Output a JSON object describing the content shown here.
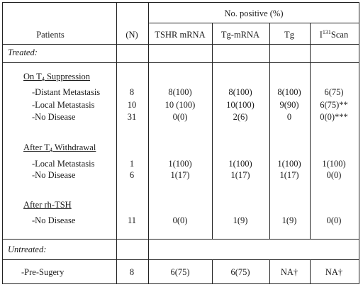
{
  "header": {
    "group_label": "No. positive (%)",
    "patients": "Patients",
    "n": "(N)",
    "tshr": "TSHR mRNA",
    "tg_mrna": "Tg-mRNA",
    "tg": "Tg",
    "scan_prefix": "I",
    "scan_sup": "131",
    "scan_suffix": "Scan"
  },
  "sections": {
    "treated": "Treated:",
    "on_t4_pre": "On T",
    "on_t4_sub": "4",
    "on_t4_post": " Suppression",
    "after_t4_pre": "After T",
    "after_t4_sub": "4",
    "after_t4_post": " Withdrawal",
    "after_rh": "After rh-TSH",
    "untreated": "Untreated:"
  },
  "rows": {
    "on_t4": [
      {
        "label": "-Distant Metastasis",
        "n": "8",
        "tshr": "8(100)",
        "tg_mrna": "8(100)",
        "tg": "8(100)",
        "scan": "6(75)"
      },
      {
        "label": "-Local Metastasis",
        "n": "10",
        "tshr": "10 (100)",
        "tg_mrna": "10(100)",
        "tg": "9(90)",
        "scan": "6(75)**"
      },
      {
        "label": "-No Disease",
        "n": "31",
        "tshr": "0(0)",
        "tg_mrna": "2(6)",
        "tg": "0",
        "scan": "0(0)***"
      }
    ],
    "after_t4": [
      {
        "label": "-Local Metastasis",
        "n": "1",
        "tshr": "1(100)",
        "tg_mrna": "1(100)",
        "tg": "1(100)",
        "scan": "1(100)"
      },
      {
        "label": "-No Disease",
        "n": "6",
        "tshr": "1(17)",
        "tg_mrna": "1(17)",
        "tg": "1(17)",
        "scan": "0(0)"
      }
    ],
    "after_rh": [
      {
        "label": "-No Disease",
        "n": "11",
        "tshr": "0(0)",
        "tg_mrna": "1(9)",
        "tg": "1(9)",
        "scan": "0(0)"
      }
    ],
    "untreated": [
      {
        "label": "-Pre-Sugery",
        "n": "8",
        "tshr": "6(75)",
        "tg_mrna": "6(75)",
        "tg": "NA†",
        "scan": "NA†"
      }
    ]
  }
}
